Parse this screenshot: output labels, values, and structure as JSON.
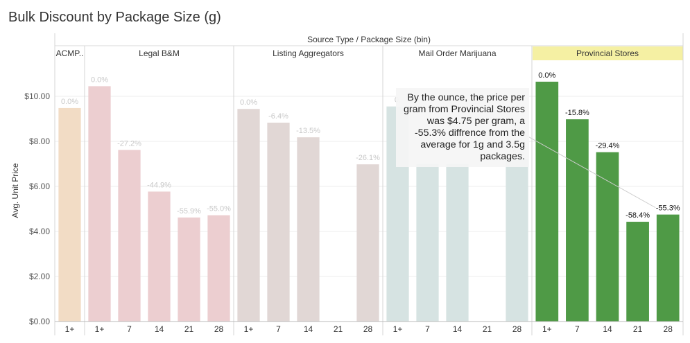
{
  "title": "Bulk Discount by Package Size (g)",
  "chart_data": {
    "type": "bar",
    "header": "Source Type / Package Size (bin)",
    "ylabel": "Avg. Unit Price",
    "ylim": [
      0,
      11.6
    ],
    "yticks": [
      "$0.00",
      "$2.00",
      "$4.00",
      "$6.00",
      "$8.00",
      "$10.00"
    ],
    "ytick_values": [
      0,
      2,
      4,
      6,
      8,
      10
    ],
    "highlight": "Provincial Stores",
    "highlight_color": "#f5f0a3",
    "panels": [
      {
        "name": "ACMP..",
        "color": "#f2dcc5",
        "label_color": "#c8c8c8",
        "categories": [
          "1+"
        ],
        "values": [
          9.48
        ],
        "labels": [
          "0.0%"
        ]
      },
      {
        "name": "Legal B&M",
        "color": "#ecced0",
        "label_color": "#c8c8c8",
        "categories": [
          "1+",
          "7",
          "14",
          "21",
          "28"
        ],
        "values": [
          10.45,
          7.62,
          5.77,
          4.62,
          4.72
        ],
        "labels": [
          "0.0%",
          "-27.2%",
          "-44.9%",
          "-55.9%",
          "-55.0%"
        ]
      },
      {
        "name": "Listing Aggregators",
        "color": "#e1d7d5",
        "label_color": "#c8c8c8",
        "categories": [
          "1+",
          "7",
          "14",
          "21",
          "28"
        ],
        "values": [
          9.44,
          8.83,
          8.18,
          null,
          6.98
        ],
        "labels": [
          "0.0%",
          "-6.4%",
          "-13.5%",
          "",
          "-26.1%"
        ]
      },
      {
        "name": "Mail Order Marijuana",
        "color": "#d6e3e2",
        "label_color": "#c8c8c8",
        "categories": [
          "1+",
          "7",
          "14",
          "21",
          "28"
        ],
        "values": [
          9.55,
          7.0,
          7.0,
          null,
          7.22
        ],
        "labels": [
          "0.",
          "",
          "",
          "",
          ".5%"
        ]
      },
      {
        "name": "Provincial Stores",
        "color": "#4f9a46",
        "label_color": "#111111",
        "categories": [
          "1+",
          "7",
          "14",
          "21",
          "28"
        ],
        "values": [
          10.65,
          8.98,
          7.52,
          4.43,
          4.75
        ],
        "labels": [
          "0.0%",
          "-15.8%",
          "-29.4%",
          "-58.4%",
          "-55.3%"
        ]
      }
    ],
    "annotation": "By the ounce, the price per gram from Provincial Stores was $4.75 per gram, a -55.3% diffrence from the average for 1g and 3.5g packages."
  }
}
